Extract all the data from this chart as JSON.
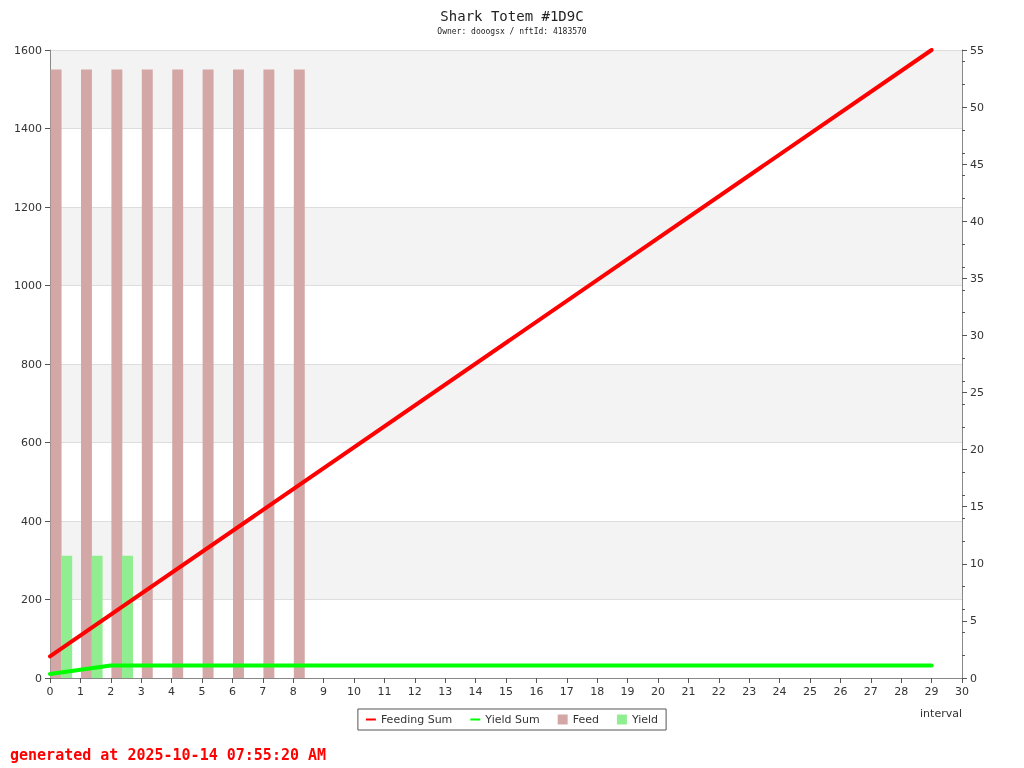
{
  "chart_data": {
    "type": "line",
    "title": "Shark Totem #1D9C",
    "subtitle": "Owner: dooogsx / nftId: 4183570",
    "xlabel": "interval",
    "xlim": [
      0,
      30
    ],
    "xticks": [
      0,
      1,
      2,
      3,
      4,
      5,
      6,
      7,
      8,
      9,
      10,
      11,
      12,
      13,
      14,
      15,
      16,
      17,
      18,
      19,
      20,
      21,
      22,
      23,
      24,
      25,
      26,
      27,
      28,
      29,
      30
    ],
    "ylim": [
      0,
      1600
    ],
    "yticks": [
      0,
      200,
      400,
      600,
      800,
      1000,
      1200,
      1400,
      1600
    ],
    "y2lim": [
      0,
      55
    ],
    "y2ticks": [
      0,
      5,
      10,
      15,
      20,
      25,
      30,
      35,
      40,
      45,
      50,
      55
    ],
    "grid": "y",
    "legend": "bottom",
    "marker": "none",
    "line_style": "solid",
    "series": [
      {
        "name": "Feeding Sum",
        "color": "#ff0000",
        "x": [
          0,
          29
        ],
        "values": [
          55,
          1600
        ]
      },
      {
        "name": "Yield Sum",
        "color": "#00ff00",
        "x": [
          0,
          1,
          2,
          29
        ],
        "values": [
          10,
          21,
          32,
          32
        ]
      },
      {
        "name": "Feed",
        "type": "bar",
        "axis": "y2",
        "color": "#d4a7a7",
        "x": [
          0.2,
          1.2,
          2.2,
          3.2,
          4.2,
          5.2,
          6.2,
          7.2,
          8.2
        ],
        "values": [
          53.3,
          53.3,
          53.3,
          53.3,
          53.3,
          53.3,
          53.3,
          53.3,
          53.3
        ]
      },
      {
        "name": "Yield",
        "type": "bar",
        "axis": "y2",
        "color": "#90ee90",
        "x": [
          0.55,
          1.55,
          2.55
        ],
        "values": [
          10.7,
          10.7,
          10.7
        ]
      }
    ],
    "annotations": [
      "generated at 2025-10-14 07:55:20 AM"
    ]
  }
}
